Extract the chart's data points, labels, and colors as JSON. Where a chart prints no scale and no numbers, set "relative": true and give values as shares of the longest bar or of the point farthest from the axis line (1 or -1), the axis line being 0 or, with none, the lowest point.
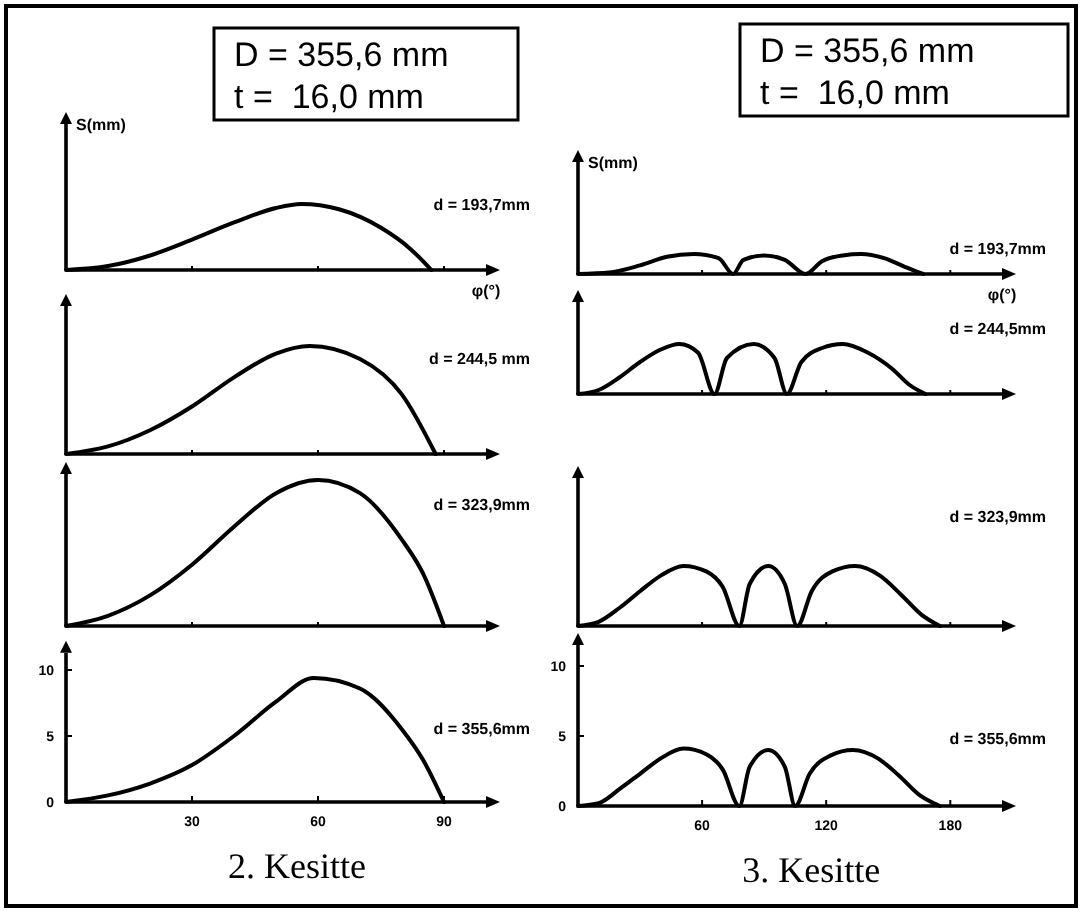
{
  "chart_data": [
    {
      "type": "line",
      "relative": true,
      "ylabel": "S(mm)",
      "xlabel": "φ(°)",
      "annotations": [
        "D = 355,6 mm",
        "t =  16,0 mm"
      ],
      "xlim": [
        0,
        100
      ],
      "xticks": [
        30,
        60,
        90
      ],
      "tick_labels": false,
      "series": [
        {
          "name": "d = 193,7mm",
          "color": "#000000",
          "x": [
            0,
            10,
            20,
            30,
            40,
            50,
            56,
            65,
            75,
            82,
            87
          ],
          "values": [
            0,
            0.06,
            0.22,
            0.46,
            0.72,
            0.94,
            1,
            0.92,
            0.64,
            0.32,
            0
          ]
        }
      ]
    },
    {
      "type": "line",
      "relative": true,
      "ylabel": "S(mm)",
      "xlabel": "φ(°)",
      "annotations": [
        "D = 355,6 mm",
        "t =  16,0 mm"
      ],
      "xlim": [
        0,
        205
      ],
      "xticks": [
        60,
        120,
        180
      ],
      "tick_labels": false,
      "series": [
        {
          "name": "d = 193,7mm",
          "color": "#000000",
          "x": [
            0,
            15,
            30,
            43,
            56,
            68,
            75,
            80,
            90,
            100,
            110,
            118,
            128,
            137,
            148,
            158,
            167
          ],
          "values": [
            0,
            0.07,
            0.43,
            0.86,
            1,
            0.79,
            0,
            0.71,
            0.93,
            0.71,
            0,
            0.64,
            0.93,
            1,
            0.79,
            0.36,
            0
          ]
        }
      ]
    },
    {
      "type": "line",
      "relative": true,
      "xlim": [
        0,
        100
      ],
      "xticks": [
        30,
        60,
        90
      ],
      "tick_labels": false,
      "series": [
        {
          "name": "d = 244,5 mm",
          "color": "#000000",
          "x": [
            0,
            10,
            20,
            30,
            40,
            50,
            58,
            70,
            80,
            88
          ],
          "values": [
            0,
            0.07,
            0.22,
            0.44,
            0.71,
            0.93,
            1,
            0.88,
            0.55,
            0
          ]
        }
      ]
    },
    {
      "type": "line",
      "relative": true,
      "xlim": [
        0,
        205
      ],
      "xticks": [
        60,
        120,
        180
      ],
      "tick_labels": false,
      "series": [
        {
          "name": "d = 244,5mm",
          "color": "#000000",
          "x": [
            0,
            10,
            20,
            30,
            40,
            49,
            58,
            66,
            72,
            85,
            95,
            101,
            108,
            118,
            128,
            140,
            152,
            160,
            168
          ],
          "values": [
            0,
            0.08,
            0.33,
            0.64,
            0.89,
            1,
            0.83,
            0,
            0.72,
            1,
            0.72,
            0,
            0.64,
            0.92,
            1,
            0.83,
            0.5,
            0.19,
            0
          ]
        }
      ]
    },
    {
      "type": "line",
      "relative": true,
      "xlim": [
        0,
        100
      ],
      "xticks": [
        30,
        60,
        90
      ],
      "tick_labels": false,
      "series": [
        {
          "name": "d = 323,9mm",
          "color": "#000000",
          "x": [
            0,
            10,
            20,
            30,
            40,
            50,
            60,
            70,
            80,
            85,
            90
          ],
          "values": [
            0,
            0.07,
            0.21,
            0.42,
            0.68,
            0.91,
            1,
            0.91,
            0.59,
            0.36,
            0
          ]
        }
      ]
    },
    {
      "type": "line",
      "relative": true,
      "xlim": [
        0,
        205
      ],
      "xticks": [
        60,
        120,
        180
      ],
      "tick_labels": false,
      "series": [
        {
          "name": "d = 323,9mm",
          "color": "#000000",
          "x": [
            0,
            10,
            20,
            30,
            40,
            51,
            62,
            70,
            78,
            83,
            92,
            100,
            106,
            113,
            123,
            134,
            146,
            156,
            166,
            175
          ],
          "values": [
            0,
            0.07,
            0.3,
            0.58,
            0.84,
            1,
            0.91,
            0.65,
            0,
            0.7,
            1,
            0.7,
            0,
            0.58,
            0.91,
            1,
            0.84,
            0.53,
            0.19,
            0
          ]
        }
      ]
    },
    {
      "type": "line",
      "annotations": [
        "2. Kesitte"
      ],
      "xlim": [
        0,
        100
      ],
      "ylim": [
        0,
        11.3
      ],
      "xticks": [
        30,
        60,
        90
      ],
      "yticks": [
        0,
        5,
        10
      ],
      "series": [
        {
          "name": "d = 355,6mm",
          "color": "#000000",
          "x": [
            0,
            10,
            20,
            30,
            40,
            50,
            59,
            70,
            80,
            85,
            90
          ],
          "values": [
            0,
            0.5,
            1.4,
            2.8,
            5,
            7.6,
            9.4,
            8.6,
            5.5,
            3.2,
            0
          ]
        }
      ]
    },
    {
      "type": "line",
      "annotations": [
        "3. Kesitte"
      ],
      "xlim": [
        0,
        205
      ],
      "ylim": [
        0,
        11.5
      ],
      "xticks": [
        60,
        120,
        180
      ],
      "yticks": [
        0,
        5,
        10
      ],
      "series": [
        {
          "name": "d = 355,6mm",
          "color": "#000000",
          "x": [
            0,
            10,
            20,
            30,
            40,
            51,
            62,
            70,
            78,
            83,
            92,
            100,
            105,
            112,
            122,
            133,
            145,
            155,
            165,
            175
          ],
          "values": [
            0,
            0.2,
            1.2,
            2.3,
            3.4,
            4.1,
            3.7,
            2.6,
            0,
            2.8,
            4.0,
            2.8,
            0,
            2.3,
            3.6,
            4.0,
            3.4,
            2.2,
            0.8,
            0
          ]
        }
      ]
    }
  ]
}
